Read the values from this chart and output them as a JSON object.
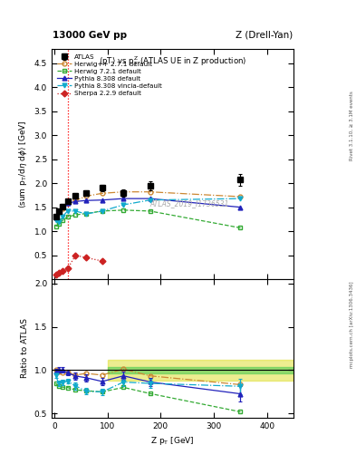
{
  "title_left": "13000 GeV pp",
  "title_right": "Z (Drell-Yan)",
  "panel_title": "<pT> vs p$_{T}^{Z}$ (ATLAS UE in Z production)",
  "ylabel_main": "<sum p$_{T}$/dη dφ> [GeV]",
  "ylabel_ratio": "Ratio to ATLAS",
  "xlabel": "Z p$_{T}$ [GeV]",
  "right_label_top": "Rivet 3.1.10, ≥ 3.1M events",
  "right_label_bot": "mcplots.cern.ch [arXiv:1306.3436]",
  "watermark": "ATLAS_2019_I1736531",
  "vline_x": 25,
  "ylim_main": [
    0.0,
    4.8
  ],
  "ylim_ratio": [
    0.45,
    2.05
  ],
  "xlim": [
    -5,
    450
  ],
  "xticks": [
    0,
    100,
    200,
    300,
    400
  ],
  "yticks_main": [
    0.5,
    1.0,
    1.5,
    2.0,
    2.5,
    3.0,
    3.5,
    4.0,
    4.5
  ],
  "yticks_ratio": [
    0.5,
    1.0,
    1.5,
    2.0
  ],
  "atlas_data": {
    "x": [
      3,
      8,
      15,
      25,
      40,
      60,
      90,
      130,
      180,
      350
    ],
    "y": [
      1.3,
      1.42,
      1.52,
      1.63,
      1.74,
      1.8,
      1.9,
      1.8,
      1.95,
      2.07
    ],
    "yerr": [
      0.04,
      0.04,
      0.04,
      0.04,
      0.06,
      0.06,
      0.06,
      0.08,
      0.09,
      0.13
    ]
  },
  "herwig_271": {
    "x": [
      3,
      8,
      15,
      25,
      40,
      60,
      90,
      130,
      180,
      350
    ],
    "y": [
      1.3,
      1.4,
      1.48,
      1.58,
      1.64,
      1.73,
      1.79,
      1.82,
      1.82,
      1.72
    ],
    "color": "#cc8833",
    "linestyle": "-.",
    "marker": "o",
    "markerface": "none",
    "label": "Herwig++ 2.7.1 default"
  },
  "herwig_721": {
    "x": [
      3,
      8,
      15,
      25,
      40,
      60,
      90,
      130,
      180,
      350
    ],
    "y": [
      1.1,
      1.15,
      1.22,
      1.3,
      1.34,
      1.37,
      1.42,
      1.44,
      1.42,
      1.07
    ],
    "color": "#33aa33",
    "linestyle": "--",
    "marker": "s",
    "markerface": "none",
    "label": "Herwig 7.2.1 default"
  },
  "pythia_default": {
    "x": [
      3,
      8,
      15,
      25,
      40,
      60,
      90,
      130,
      180,
      350
    ],
    "y": [
      1.28,
      1.42,
      1.52,
      1.58,
      1.62,
      1.64,
      1.65,
      1.68,
      1.68,
      1.5
    ],
    "color": "#2222bb",
    "linestyle": "-",
    "marker": "^",
    "markerface": "fill",
    "label": "Pythia 8.308 default"
  },
  "pythia_vincia": {
    "x": [
      3,
      8,
      15,
      25,
      40,
      60,
      90,
      130,
      180,
      350
    ],
    "y": [
      1.22,
      1.2,
      1.3,
      1.42,
      1.42,
      1.36,
      1.42,
      1.55,
      1.65,
      1.68
    ],
    "color": "#11aacc",
    "linestyle": "-.",
    "marker": "v",
    "markerface": "fill",
    "label": "Pythia 8.308 vincia-default"
  },
  "sherpa": {
    "x": [
      3,
      8,
      15,
      25,
      40,
      60,
      90
    ],
    "y": [
      0.1,
      0.13,
      0.17,
      0.22,
      0.5,
      0.45,
      0.38
    ],
    "color": "#cc2222",
    "linestyle": ":",
    "marker": "D",
    "markerface": "fill",
    "label": "Sherpa 2.2.9 default"
  },
  "band_yellow_xstart": 100,
  "ratio_band_green": {
    "ymin": 0.96,
    "ymax": 1.04,
    "color": "#55cc55",
    "alpha": 0.6
  },
  "ratio_band_yellow": {
    "ymin": 0.88,
    "ymax": 1.12,
    "color": "#dddd22",
    "alpha": 0.5
  },
  "ratio_herwig_271_x": [
    3,
    8,
    15,
    25,
    40,
    60,
    90,
    130,
    180,
    350
  ],
  "ratio_herwig_271": [
    1.0,
    0.986,
    0.974,
    0.969,
    0.943,
    0.961,
    0.942,
    1.011,
    0.933,
    0.831
  ],
  "ratio_herwig_721_x": [
    3,
    8,
    15,
    25,
    40,
    60,
    90,
    130,
    180,
    350
  ],
  "ratio_herwig_721": [
    0.846,
    0.81,
    0.803,
    0.798,
    0.77,
    0.761,
    0.747,
    0.8,
    0.728,
    0.517
  ],
  "ratio_pythia_default_x": [
    3,
    8,
    15,
    25,
    40,
    60,
    90,
    130,
    180,
    350
  ],
  "ratio_pythia_default": [
    0.985,
    1.0,
    1.0,
    0.969,
    0.931,
    0.911,
    0.868,
    0.933,
    0.862,
    0.725
  ],
  "ratio_pythia_vincia_x": [
    3,
    8,
    15,
    25,
    40,
    60,
    90,
    130,
    180,
    350
  ],
  "ratio_pythia_vincia": [
    0.938,
    0.845,
    0.855,
    0.871,
    0.816,
    0.756,
    0.747,
    0.861,
    0.846,
    0.812
  ],
  "ratio_pythia_default_yerr": [
    0.03,
    0.03,
    0.03,
    0.03,
    0.04,
    0.04,
    0.04,
    0.05,
    0.05,
    0.09
  ],
  "ratio_pythia_vincia_yerr": [
    0.03,
    0.03,
    0.03,
    0.03,
    0.04,
    0.04,
    0.04,
    0.05,
    0.05,
    0.09
  ]
}
